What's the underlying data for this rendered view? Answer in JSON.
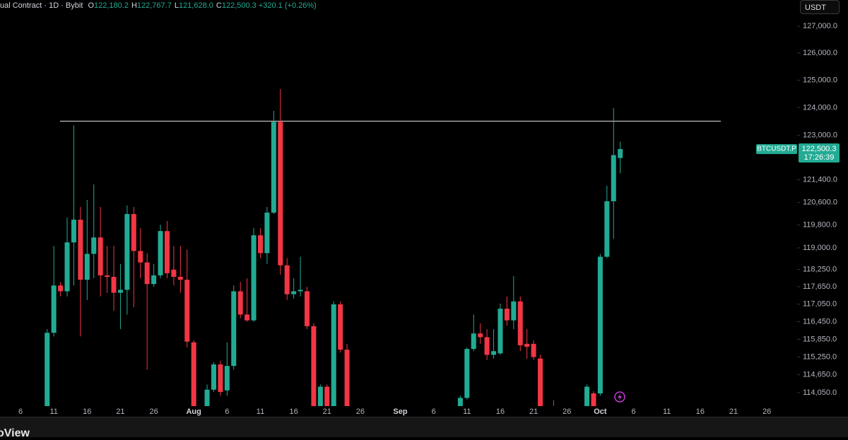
{
  "header": {
    "symbol": "ual Contract · 1D · Bybit",
    "ohlc": [
      {
        "label": "O",
        "value": "122,180.2"
      },
      {
        "label": "H",
        "value": "122,767.7"
      },
      {
        "label": "L",
        "value": "121,628.0"
      },
      {
        "label": "C",
        "value": "122,500.3"
      }
    ],
    "change": "+320.1 (+0.26%)"
  },
  "currency_button": "USDT",
  "footer_text": "oView",
  "chart_data": {
    "type": "candlestick",
    "categories": [
      null,
      null,
      "6",
      null,
      null,
      null,
      null,
      "11",
      null,
      null,
      null,
      null,
      "16",
      null,
      null,
      null,
      null,
      "21",
      null,
      null,
      null,
      null,
      "26",
      null,
      null,
      null,
      null,
      null,
      "Aug",
      null,
      null,
      null,
      null,
      "6",
      null,
      null,
      null,
      null,
      "11",
      null,
      null,
      null,
      null,
      "16",
      null,
      null,
      null,
      null,
      "21",
      null,
      null,
      null,
      null,
      "26",
      null,
      null,
      null,
      null,
      null,
      "Sep",
      null,
      null,
      null,
      null,
      "6",
      null,
      null,
      null,
      null,
      "11",
      null,
      null,
      null,
      null,
      "16",
      null,
      null,
      null,
      null,
      "21",
      null,
      null,
      null,
      null,
      "26",
      null,
      null,
      null,
      null,
      "Oct",
      null,
      null,
      null,
      null,
      "6",
      null,
      null,
      null,
      null,
      "11",
      null,
      null,
      null,
      null,
      "16",
      null,
      null,
      null,
      null,
      "21",
      null,
      null,
      null,
      null,
      "26",
      null,
      null,
      null
    ],
    "open": [
      null,
      null,
      null,
      null,
      null,
      null,
      113200,
      116072,
      117694,
      117494,
      119191,
      119989,
      117893,
      118791,
      119365,
      118043,
      117993,
      117444,
      117544,
      120188,
      118891,
      118492,
      117744,
      118043,
      119589,
      118242,
      117993,
      117893,
      115747,
      null,
      113600,
      114151,
      114999,
      114126,
      114949,
      117494,
      116696,
      116496,
      119440,
      118816,
      120238,
      123482,
      118392,
      117394,
      117494,
      117494,
      116297,
      113500,
      114250,
      113400,
      117045,
      115498,
      null,
      null,
      null,
      null,
      null,
      null,
      null,
      null,
      null,
      null,
      null,
      null,
      null,
      null,
      null,
      null,
      113500,
      113876,
      115523,
      116048,
      115922,
      115324,
      115374,
      116896,
      116496,
      117145,
      115697,
      115697,
      115199,
      null,
      113500,
      null,
      null,
      null,
      null,
      113500,
      114026,
      114026,
      118691,
      120638,
      122180.2,
      null,
      null,
      null,
      null,
      null,
      null,
      null,
      null,
      null,
      null,
      null,
      null,
      null,
      null,
      null,
      null,
      null,
      null,
      null,
      null,
      null,
      null,
      null,
      null,
      null
    ],
    "high": [
      null,
      null,
      null,
      null,
      null,
      null,
      116196,
      119066,
      117818,
      120064,
      123357,
      120438,
      120688,
      121237,
      120438,
      119066,
      119066,
      118442,
      120488,
      120438,
      119689,
      118816,
      118442,
      119814,
      119939,
      119066,
      119066,
      118941,
      115822,
      null,
      114325,
      115074,
      115124,
      115747,
      117694,
      117818,
      117943,
      119689,
      119689,
      120438,
      123882,
      124679,
      118642,
      117943,
      118691,
      117645,
      116396,
      114325,
      114325,
      117145,
      117145,
      115697,
      null,
      null,
      null,
      null,
      null,
      null,
      null,
      null,
      null,
      null,
      null,
      null,
      null,
      null,
      null,
      null,
      113951,
      115573,
      116696,
      116396,
      116196,
      116196,
      117070,
      117319,
      118018,
      117319,
      116196,
      115822,
      115324,
      null,
      113800,
      null,
      null,
      null,
      null,
      114325,
      114100,
      118791,
      121187,
      123981,
      122767.7,
      null,
      null,
      null,
      null,
      null,
      null,
      null,
      null,
      null,
      null,
      null,
      null,
      null,
      null,
      null,
      null,
      null,
      null,
      null,
      null,
      null,
      null,
      null,
      null,
      null
    ],
    "low": [
      null,
      null,
      null,
      null,
      null,
      null,
      112953,
      115947,
      117319,
      117319,
      117694,
      115947,
      117194,
      117943,
      117319,
      117444,
      116820,
      116196,
      116696,
      116945,
      117943,
      114824,
      117645,
      117943,
      117943,
      117694,
      117444,
      115573,
      112953,
      null,
      113400,
      114076,
      113951,
      113951,
      114824,
      116571,
      116446,
      116446,
      118642,
      118442,
      120188,
      118068,
      117194,
      117244,
      117319,
      116196,
      112953,
      113300,
      113200,
      113200,
      115398,
      112953,
      null,
      null,
      null,
      null,
      null,
      null,
      null,
      null,
      null,
      null,
      null,
      null,
      null,
      null,
      null,
      null,
      113400,
      113826,
      115448,
      115697,
      115149,
      115199,
      115324,
      116321,
      116196,
      115448,
      115199,
      115149,
      112953,
      null,
      113100,
      null,
      null,
      null,
      null,
      113400,
      113200,
      113951,
      118642,
      119315,
      121628.0,
      null,
      null,
      null,
      null,
      null,
      null,
      null,
      null,
      null,
      null,
      null,
      null,
      null,
      null,
      null,
      null,
      null,
      null,
      null,
      null,
      null,
      null,
      null,
      null,
      null
    ],
    "close": [
      null,
      null,
      null,
      null,
      null,
      null,
      116072,
      117694,
      117494,
      119191,
      119989,
      117893,
      118791,
      119365,
      118043,
      117993,
      117444,
      117544,
      120188,
      118891,
      118492,
      117744,
      118043,
      119589,
      118118,
      117993,
      117893,
      115772,
      113452,
      null,
      114151,
      114999,
      114076,
      114949,
      117494,
      116696,
      116496,
      119440,
      118816,
      120238,
      123482,
      118392,
      117394,
      117494,
      117544,
      116297,
      113452,
      114250,
      113450,
      117045,
      115498,
      113452,
      null,
      null,
      null,
      null,
      null,
      null,
      null,
      null,
      null,
      null,
      null,
      null,
      null,
      null,
      null,
      null,
      113876,
      115523,
      116048,
      115922,
      115324,
      115448,
      116896,
      116496,
      117145,
      115648,
      115598,
      115249,
      113452,
      null,
      113300,
      null,
      null,
      null,
      null,
      114250,
      113400,
      118691,
      120638,
      122284,
      122500.3,
      null,
      null,
      null,
      null,
      null,
      null,
      null,
      null,
      null,
      null,
      null,
      null,
      null,
      null,
      null,
      null,
      null,
      null,
      null,
      null,
      null,
      null,
      null,
      null,
      null
    ],
    "up_color": "#22ab94",
    "down_color": "#f23645",
    "log_scale": true,
    "ylim": [
      113602,
      127977
    ],
    "yticks": [
      {
        "value": 127000,
        "label": "127,000.0"
      },
      {
        "value": 126000,
        "label": "126,000.0"
      },
      {
        "value": 125000,
        "label": "125,000.0"
      },
      {
        "value": 124000,
        "label": "124,000.0"
      },
      {
        "value": 123000,
        "label": "123,000.0"
      },
      {
        "value": 121400,
        "label": "121,400.0"
      },
      {
        "value": 120600,
        "label": "120,600.0"
      },
      {
        "value": 119800,
        "label": "119,800.0"
      },
      {
        "value": 119000,
        "label": "119,000.0"
      },
      {
        "value": 118250,
        "label": "118,250.0"
      },
      {
        "value": 117650,
        "label": "117,650.0"
      },
      {
        "value": 117050,
        "label": "117,050.0"
      },
      {
        "value": 116450,
        "label": "116,450.0"
      },
      {
        "value": 115850,
        "label": "115,850.0"
      },
      {
        "value": 115250,
        "label": "115,250.0"
      },
      {
        "value": 114650,
        "label": "114,650.0"
      },
      {
        "value": 114050,
        "label": "114,050.0"
      }
    ],
    "grid": false,
    "horizontal_line": 123507,
    "last_price": {
      "symbol": "BTCUSDT.P",
      "label": "122,500.3",
      "countdown": "17:26:39"
    }
  }
}
